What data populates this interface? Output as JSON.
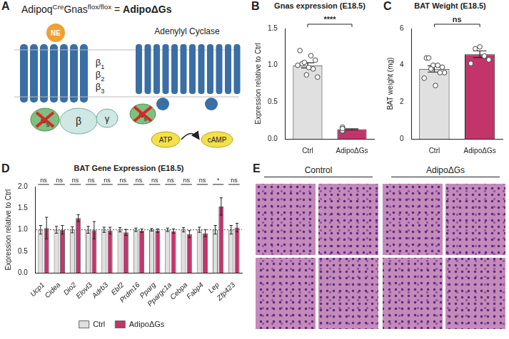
{
  "diagram": {
    "panel_label": "A",
    "title": [
      {
        "text": "Adipoq"
      },
      {
        "text": "Cre",
        "sup": true
      },
      {
        "text": "Gnas"
      },
      {
        "text": "flox/flox",
        "sup": true
      },
      {
        "text": " = "
      },
      {
        "text": "AdipoΔGs"
      }
    ],
    "ligand": "NE",
    "receptor_labels": [
      {
        "text": "β",
        "sub": "1"
      },
      {
        "text": "β",
        "sub": "2"
      },
      {
        "text": "β",
        "sub": "3"
      }
    ],
    "g_alpha": {
      "text": "α",
      "sub": "s"
    },
    "g_beta": "β",
    "g_gamma": "γ",
    "enzyme": "Adenylyl Cyclase",
    "substrate": "ATP",
    "product": "cAMP"
  },
  "chart_data": [
    {
      "panel_label": "B",
      "type": "bar",
      "title": "Gnas expression (E18.5)",
      "y_label": "Expression relative to Ctrl",
      "categories": [
        "Ctrl",
        "AdipoΔGs"
      ],
      "values": [
        1.0,
        0.13
      ],
      "errors": [
        0.035,
        0.008
      ],
      "points": [
        [
          1.0,
          0.95,
          0.87,
          1.2,
          1.07,
          0.97,
          1.02,
          0.84,
          1.13,
          1.04
        ],
        [
          0.12,
          0.15,
          0.1,
          0.16,
          0.13,
          0.11,
          0.14
        ]
      ],
      "colors": [
        "#e0e0e0",
        "#c2356b"
      ],
      "ylim": [
        0,
        1.5
      ],
      "yticks": [
        {
          "value": 0,
          "label": "0.0"
        },
        {
          "value": 0.5,
          "label": "0.5"
        },
        {
          "value": 1,
          "label": "1.0"
        },
        {
          "value": 1.5,
          "label": "1.5"
        }
      ],
      "grid": false,
      "significance": "****"
    },
    {
      "panel_label": "C",
      "type": "bar",
      "title": "BAT Weight (E18.5)",
      "y_label": "BAT weight (mg)",
      "categories": [
        "Ctrl",
        "AdipoΔGs"
      ],
      "values": [
        3.8,
        4.6
      ],
      "errors": [
        0.17,
        0.18
      ],
      "points": [
        [
          3.3,
          3.6,
          4.0,
          4.4,
          3.9,
          2.9,
          4.4,
          3.6,
          4.0,
          3.8
        ],
        [
          4.1,
          5.0,
          4.3,
          4.9,
          4.5
        ]
      ],
      "colors": [
        "#e0e0e0",
        "#c2356b"
      ],
      "ylim": [
        0,
        6
      ],
      "yticks": [
        0,
        2,
        4,
        6
      ],
      "grid": false,
      "significance": "ns"
    },
    {
      "panel_label": "D",
      "type": "bar",
      "title": "BAT Gene Expression (E18.5)",
      "y_label": "Expression relative to Ctrl",
      "categories": [
        "Ucp1",
        "Cidea",
        "Dio2",
        "Elovl3",
        "Adrb3",
        "Ebf2",
        "Prdm16",
        "Pparg",
        "Ppargc1a",
        "Cebpa",
        "Fabp4",
        "Lep",
        "Zfp423"
      ],
      "series": [
        {
          "name": "Ctrl",
          "color": "#e0e0e0",
          "values": [
            1,
            1,
            1,
            1,
            1,
            1,
            1,
            1,
            1,
            1,
            1,
            1,
            1
          ],
          "errors": [
            0.1,
            0.08,
            0.07,
            0.08,
            0.06,
            0.05,
            0.04,
            0.03,
            0.04,
            0.05,
            0.06,
            0.1,
            0.1
          ]
        },
        {
          "name": "AdipoΔGs",
          "color": "#c2356b",
          "values": [
            1.04,
            1.0,
            1.27,
            0.99,
            0.98,
            0.94,
            0.98,
            0.98,
            0.97,
            0.9,
            0.92,
            1.54,
            1.05
          ],
          "errors": [
            0.25,
            0.1,
            0.08,
            0.2,
            0.08,
            0.07,
            0.04,
            0.04,
            0.05,
            0.08,
            0.08,
            0.2,
            0.1
          ]
        }
      ],
      "ylim": [
        0,
        2
      ],
      "yticks": [
        {
          "value": 0,
          "label": "0.0"
        },
        {
          "value": 0.5,
          "label": "0.5"
        },
        {
          "value": 1,
          "label": "1.0"
        },
        {
          "value": 1.5,
          "label": "1.5"
        },
        {
          "value": 2,
          "label": "2.0"
        }
      ],
      "grid": false,
      "reference_line": 1,
      "legend": "bottom",
      "significance": [
        "ns",
        "ns",
        "ns",
        "ns",
        "ns",
        "ns",
        "ns",
        "ns",
        "ns",
        "ns",
        "ns",
        "*",
        "ns"
      ]
    }
  ],
  "images": {
    "panel_label": "E",
    "columns": [
      "Control",
      "AdipoΔGs"
    ]
  }
}
